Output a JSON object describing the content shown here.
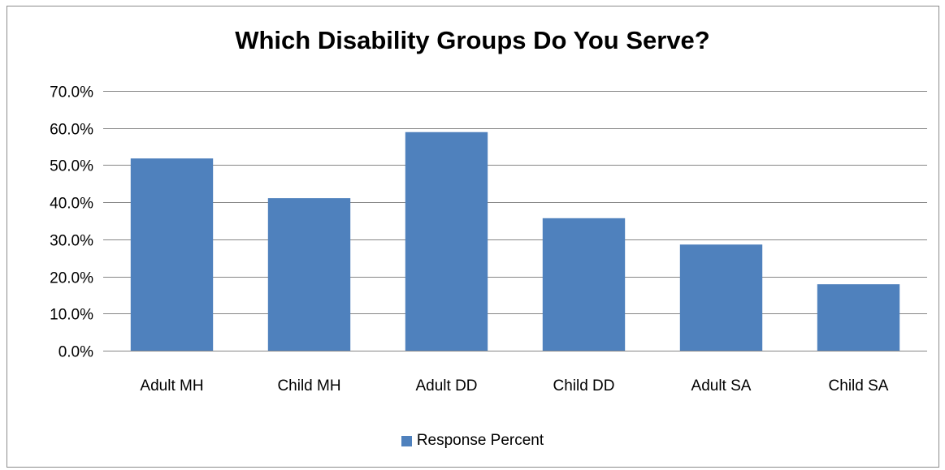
{
  "chart_data": {
    "type": "bar",
    "title": "Which Disability Groups Do You Serve?",
    "categories": [
      "Adult MH",
      "Child MH",
      "Adult DD",
      "Child DD",
      "Adult SA",
      "Child SA"
    ],
    "series": [
      {
        "name": "Response Percent",
        "values": [
          51.8,
          41.1,
          58.9,
          35.7,
          28.6,
          17.9
        ],
        "color": "#4f81bd"
      }
    ],
    "y_ticks": [
      "0.0%",
      "10.0%",
      "20.0%",
      "30.0%",
      "40.0%",
      "50.0%",
      "60.0%",
      "70.0%"
    ],
    "ylim": [
      0,
      70
    ],
    "xlabel": "",
    "ylabel": "",
    "grid": true,
    "legend_position": "bottom",
    "gridline_color": "#868686"
  }
}
